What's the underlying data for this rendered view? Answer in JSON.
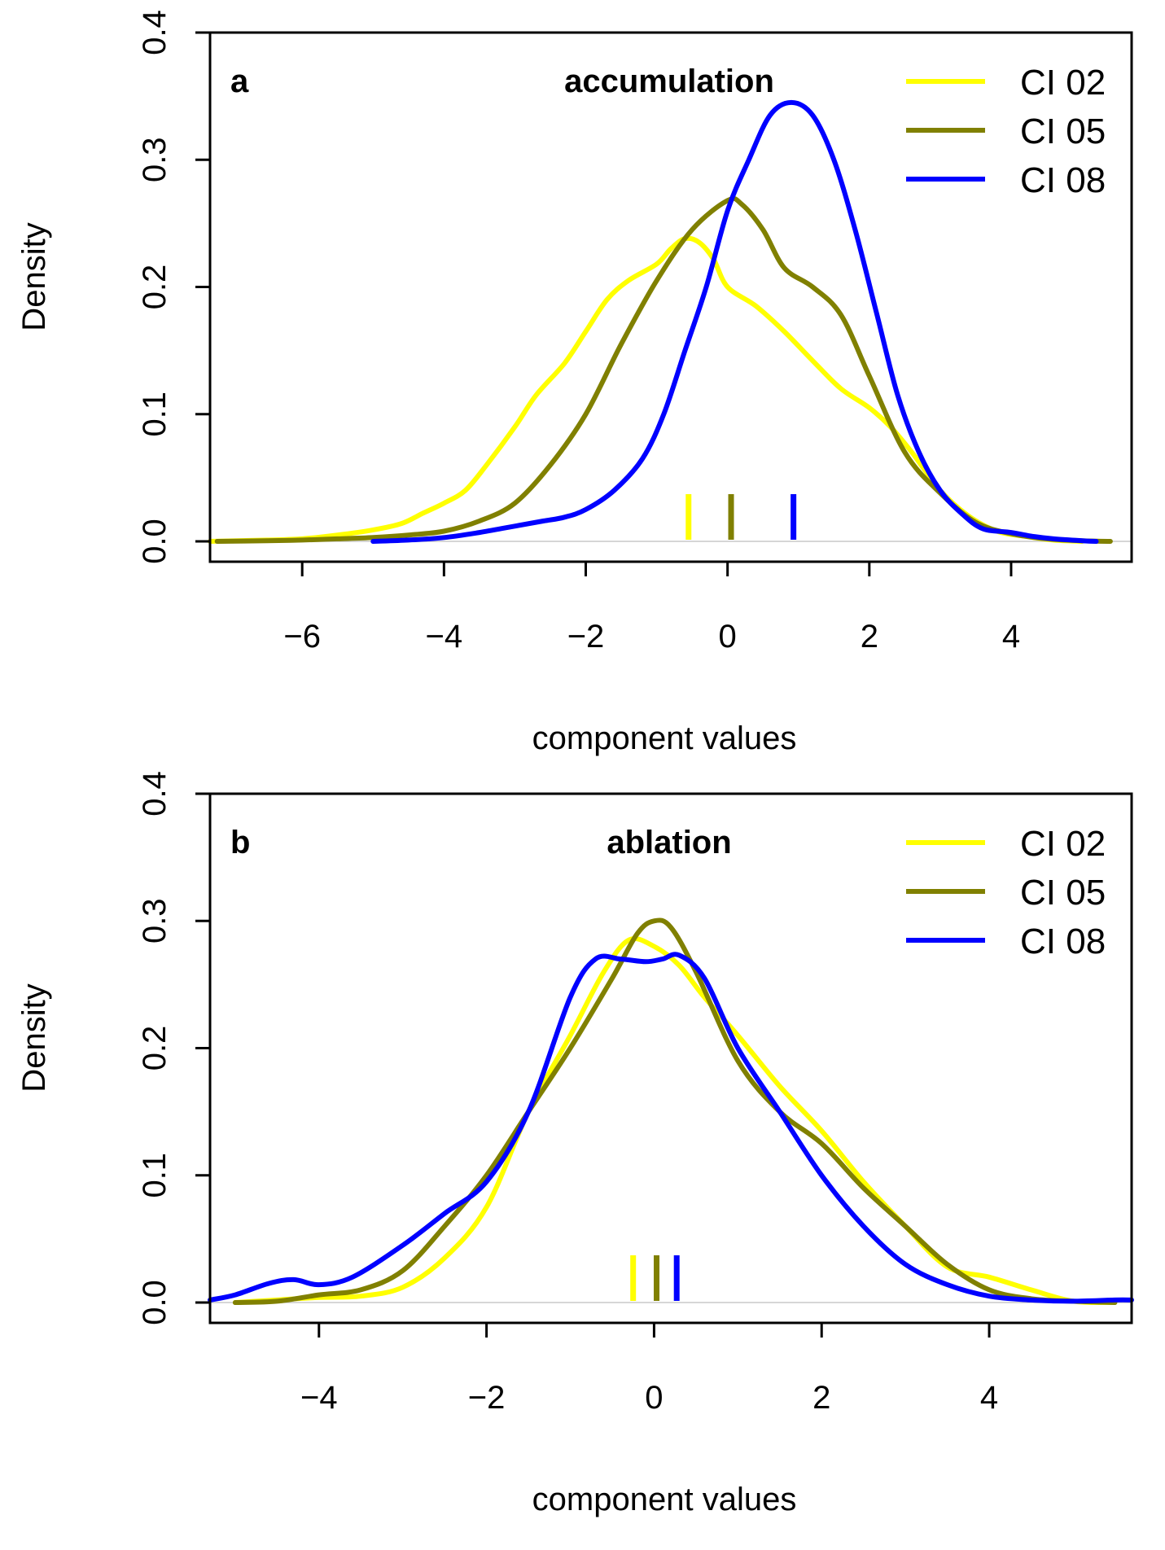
{
  "chart_data": [
    {
      "type": "line",
      "panel": "a",
      "title": "accumulation",
      "xlabel": "component values",
      "ylabel": "Density",
      "xlim": [
        -7.3,
        5.7
      ],
      "ylim": [
        -0.016,
        0.4
      ],
      "xticks": [
        -6,
        -4,
        -2,
        0,
        2,
        4
      ],
      "xtick_labels": [
        "−6",
        "−4",
        "−2",
        "0",
        "2",
        "4"
      ],
      "yticks": [
        0.0,
        0.1,
        0.2,
        0.3,
        0.4
      ],
      "ytick_labels": [
        "0.0",
        "0.1",
        "0.2",
        "0.3",
        "0.4"
      ],
      "legend_position": "top-right",
      "series": [
        {
          "name": "CI 02",
          "color": "#ffff00",
          "mean": -0.55,
          "x": [
            -7.3,
            -6.5,
            -6,
            -5.5,
            -5,
            -4.6,
            -4.3,
            -4,
            -3.7,
            -3.4,
            -3,
            -2.7,
            -2.3,
            -2,
            -1.7,
            -1.4,
            -1,
            -0.8,
            -0.6,
            -0.4,
            -0.2,
            0,
            0.4,
            0.8,
            1.2,
            1.6,
            2,
            2.3,
            2.6,
            3,
            3.4,
            3.8,
            4.2,
            4.6,
            5
          ],
          "values": [
            0.0,
            0.001,
            0.002,
            0.005,
            0.009,
            0.014,
            0.022,
            0.03,
            0.04,
            0.06,
            0.09,
            0.115,
            0.14,
            0.165,
            0.19,
            0.205,
            0.218,
            0.23,
            0.238,
            0.235,
            0.222,
            0.2,
            0.185,
            0.165,
            0.142,
            0.12,
            0.105,
            0.09,
            0.07,
            0.04,
            0.02,
            0.008,
            0.004,
            0.001,
            0.0
          ]
        },
        {
          "name": "CI 05",
          "color": "#808000",
          "mean": 0.05,
          "x": [
            -7.2,
            -6.5,
            -6,
            -5.5,
            -5,
            -4.5,
            -4,
            -3.5,
            -3,
            -2.5,
            -2,
            -1.5,
            -1,
            -0.5,
            0,
            0.2,
            0.5,
            0.8,
            1.2,
            1.6,
            2,
            2.5,
            3,
            3.5,
            4,
            4.5,
            5,
            5.4
          ],
          "values": [
            0.0,
            0.0005,
            0.001,
            0.002,
            0.003,
            0.005,
            0.008,
            0.016,
            0.03,
            0.06,
            0.1,
            0.155,
            0.205,
            0.245,
            0.268,
            0.265,
            0.245,
            0.215,
            0.2,
            0.178,
            0.13,
            0.07,
            0.038,
            0.015,
            0.006,
            0.002,
            0.0005,
            0.0
          ]
        },
        {
          "name": "CI 08",
          "color": "#0000ff",
          "mean": 0.93,
          "x": [
            -5,
            -4.5,
            -4,
            -3.5,
            -3,
            -2.6,
            -2.3,
            -2,
            -1.6,
            -1.2,
            -0.9,
            -0.6,
            -0.3,
            0,
            0.3,
            0.6,
            0.9,
            1.2,
            1.5,
            1.8,
            2.1,
            2.4,
            2.7,
            3,
            3.3,
            3.6,
            4,
            4.3,
            4.6,
            5,
            5.2
          ],
          "values": [
            0.0,
            0.001,
            0.003,
            0.007,
            0.012,
            0.016,
            0.019,
            0.025,
            0.04,
            0.065,
            0.1,
            0.15,
            0.2,
            0.26,
            0.3,
            0.335,
            0.345,
            0.335,
            0.3,
            0.245,
            0.18,
            0.115,
            0.07,
            0.04,
            0.022,
            0.01,
            0.007,
            0.004,
            0.002,
            0.0005,
            0.0
          ]
        }
      ]
    },
    {
      "type": "line",
      "panel": "b",
      "title": "ablation",
      "xlabel": "component values",
      "ylabel": "Density",
      "xlim": [
        -5.3,
        5.7
      ],
      "ylim": [
        -0.016,
        0.4
      ],
      "xticks": [
        -4,
        -2,
        0,
        2,
        4
      ],
      "xtick_labels": [
        "−4",
        "−2",
        "0",
        "2",
        "4"
      ],
      "yticks": [
        0.0,
        0.1,
        0.2,
        0.3,
        0.4
      ],
      "ytick_labels": [
        "0.0",
        "0.1",
        "0.2",
        "0.3",
        "0.4"
      ],
      "legend_position": "top-right",
      "series": [
        {
          "name": "CI 02",
          "color": "#ffff00",
          "mean": -0.25,
          "x": [
            -5,
            -4.5,
            -4,
            -3.5,
            -3,
            -2.5,
            -2,
            -1.5,
            -1,
            -0.6,
            -0.3,
            0,
            0.3,
            0.6,
            1,
            1.5,
            2,
            2.5,
            3,
            3.5,
            4,
            4.5,
            5,
            5.5
          ],
          "values": [
            0.0,
            0.002,
            0.004,
            0.005,
            0.012,
            0.035,
            0.075,
            0.15,
            0.21,
            0.26,
            0.285,
            0.28,
            0.265,
            0.24,
            0.21,
            0.17,
            0.135,
            0.095,
            0.06,
            0.028,
            0.02,
            0.01,
            0.001,
            0.0
          ]
        },
        {
          "name": "CI 05",
          "color": "#808000",
          "mean": 0.03,
          "x": [
            -5,
            -4.5,
            -4,
            -3.5,
            -3,
            -2.5,
            -2,
            -1.5,
            -1,
            -0.5,
            -0.2,
            0,
            0.2,
            0.5,
            1,
            1.5,
            2,
            2.5,
            3,
            3.5,
            4,
            4.5,
            5,
            5.5
          ],
          "values": [
            0.0,
            0.001,
            0.006,
            0.01,
            0.025,
            0.06,
            0.1,
            0.15,
            0.2,
            0.255,
            0.29,
            0.3,
            0.295,
            0.26,
            0.19,
            0.15,
            0.125,
            0.09,
            0.06,
            0.03,
            0.01,
            0.003,
            0.001,
            0.0
          ]
        },
        {
          "name": "CI 08",
          "color": "#0000ff",
          "mean": 0.27,
          "x": [
            -5.3,
            -5,
            -4.6,
            -4.3,
            -4,
            -3.6,
            -3,
            -2.5,
            -2,
            -1.5,
            -1,
            -0.7,
            -0.4,
            -0.1,
            0.1,
            0.3,
            0.6,
            1,
            1.5,
            2,
            2.5,
            3,
            3.5,
            4,
            4.5,
            5,
            5.5,
            5.7
          ],
          "values": [
            0.002,
            0.006,
            0.015,
            0.018,
            0.014,
            0.02,
            0.045,
            0.07,
            0.095,
            0.15,
            0.24,
            0.27,
            0.27,
            0.268,
            0.27,
            0.273,
            0.255,
            0.2,
            0.15,
            0.1,
            0.06,
            0.03,
            0.014,
            0.005,
            0.002,
            0.001,
            0.002,
            0.002
          ]
        }
      ]
    }
  ]
}
